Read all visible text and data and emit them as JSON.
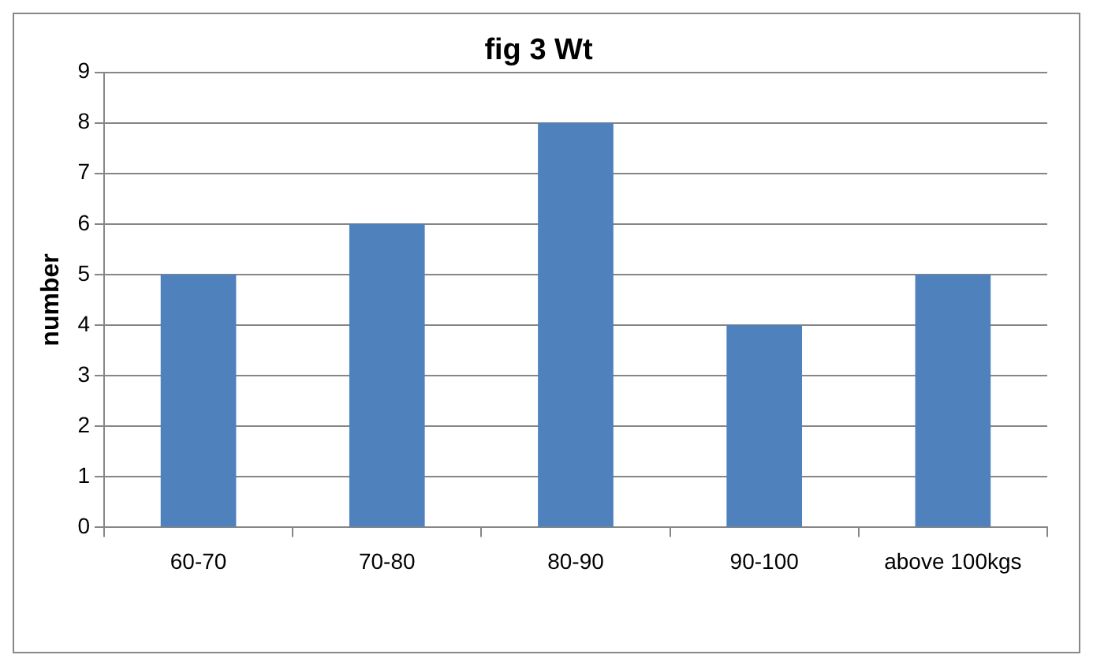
{
  "chart_data": {
    "type": "bar",
    "title": "fig 3 Wt",
    "ylabel": "number",
    "categories": [
      "60-70",
      "70-80",
      "80-90",
      "90-100",
      "above 100kgs"
    ],
    "values": [
      5,
      6,
      8,
      4,
      5
    ],
    "color": "#4f81bd",
    "ylim": [
      0,
      9
    ],
    "yticks": [
      0,
      1,
      2,
      3,
      4,
      5,
      6,
      7,
      8,
      9
    ],
    "grid": "y",
    "legend": false
  }
}
